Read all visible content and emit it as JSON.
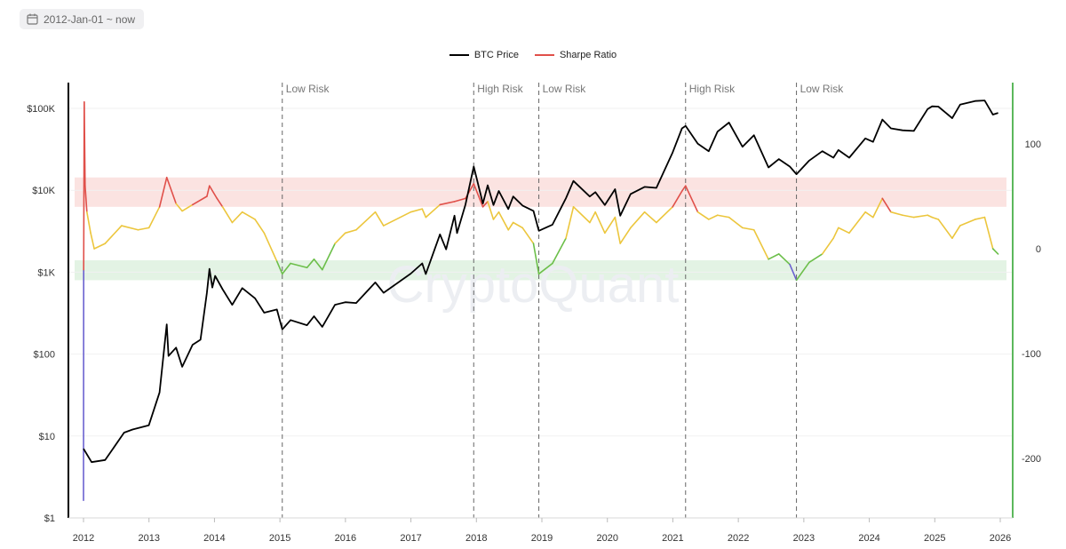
{
  "date_range": {
    "label": "2012-Jan-01 ~ now",
    "icon": "calendar-icon"
  },
  "watermark": "CryptoQuant",
  "colors": {
    "price": "#000000",
    "sharpe_red": "#e0504a",
    "sharpe_yellow": "#ecc63d",
    "sharpe_green": "#6cbf4a",
    "sharpe_blue": "#6b62d0",
    "right_axis": "#5cb85c",
    "high_band": "#fbe3e1",
    "low_band": "#e3f3e4"
  },
  "chart_data": {
    "type": "line",
    "legend": [
      "BTC Price",
      "Sharpe Ratio"
    ],
    "legend_position": "top-center",
    "grid": true,
    "x_axis": {
      "ticks": [
        "2012",
        "2013",
        "2014",
        "2015",
        "2016",
        "2017",
        "2018",
        "2019",
        "2020",
        "2021",
        "2022",
        "2023",
        "2024",
        "2025",
        "2026"
      ]
    },
    "y_left": {
      "scale": "log",
      "ticks": [
        "$1",
        "$10",
        "$100",
        "$1K",
        "$10K",
        "$100K"
      ],
      "range": [
        1,
        200000
      ]
    },
    "y_right": {
      "scale": "linear",
      "ticks": [
        "100",
        "0",
        "-100",
        "-200"
      ],
      "range": [
        -255,
        160
      ]
    },
    "bands": [
      {
        "label": "high",
        "from": 40,
        "to": 68
      },
      {
        "label": "low",
        "from": -30,
        "to": -11
      }
    ],
    "annotations": [
      {
        "x": "2015-01-14",
        "text": "Low Risk"
      },
      {
        "x": "2017-12-17",
        "text": "High Risk"
      },
      {
        "x": "2018-12-15",
        "text": "Low Risk"
      },
      {
        "x": "2021-03-13",
        "text": "High Risk"
      },
      {
        "x": "2022-11-21",
        "text": "Low Risk"
      }
    ],
    "series": [
      {
        "name": "BTC Price",
        "axis": "left",
        "points": [
          [
            "2012-01-01",
            7
          ],
          [
            "2012-02-15",
            4.8
          ],
          [
            "2012-05-01",
            5.1
          ],
          [
            "2012-08-15",
            11
          ],
          [
            "2012-10-01",
            12
          ],
          [
            "2012-12-31",
            13.5
          ],
          [
            "2013-03-01",
            34
          ],
          [
            "2013-04-10",
            230
          ],
          [
            "2013-04-20",
            95
          ],
          [
            "2013-06-01",
            120
          ],
          [
            "2013-07-05",
            70
          ],
          [
            "2013-09-01",
            130
          ],
          [
            "2013-10-15",
            150
          ],
          [
            "2013-11-20",
            560
          ],
          [
            "2013-12-04",
            1100
          ],
          [
            "2013-12-20",
            650
          ],
          [
            "2014-01-05",
            900
          ],
          [
            "2014-02-15",
            620
          ],
          [
            "2014-04-10",
            400
          ],
          [
            "2014-06-05",
            640
          ],
          [
            "2014-08-15",
            480
          ],
          [
            "2014-10-05",
            320
          ],
          [
            "2014-12-15",
            350
          ],
          [
            "2015-01-14",
            200
          ],
          [
            "2015-03-01",
            260
          ],
          [
            "2015-06-01",
            225
          ],
          [
            "2015-07-10",
            290
          ],
          [
            "2015-08-25",
            215
          ],
          [
            "2015-11-04",
            400
          ],
          [
            "2015-12-31",
            430
          ],
          [
            "2016-03-01",
            420
          ],
          [
            "2016-06-16",
            750
          ],
          [
            "2016-08-01",
            560
          ],
          [
            "2016-12-31",
            960
          ],
          [
            "2017-03-05",
            1280
          ],
          [
            "2017-03-25",
            950
          ],
          [
            "2017-06-12",
            2900
          ],
          [
            "2017-07-16",
            1900
          ],
          [
            "2017-09-01",
            4900
          ],
          [
            "2017-09-15",
            3000
          ],
          [
            "2017-11-01",
            6700
          ],
          [
            "2017-12-17",
            19500
          ],
          [
            "2018-02-06",
            6900
          ],
          [
            "2018-03-05",
            11500
          ],
          [
            "2018-04-06",
            6600
          ],
          [
            "2018-05-06",
            9800
          ],
          [
            "2018-06-28",
            5900
          ],
          [
            "2018-07-25",
            8400
          ],
          [
            "2018-09-15",
            6500
          ],
          [
            "2018-11-15",
            5600
          ],
          [
            "2018-12-15",
            3200
          ],
          [
            "2019-03-01",
            3800
          ],
          [
            "2019-05-15",
            8000
          ],
          [
            "2019-06-26",
            13000
          ],
          [
            "2019-09-25",
            8400
          ],
          [
            "2019-10-26",
            9500
          ],
          [
            "2019-12-18",
            6600
          ],
          [
            "2020-02-13",
            10300
          ],
          [
            "2020-03-13",
            4900
          ],
          [
            "2020-05-10",
            9000
          ],
          [
            "2020-07-27",
            11000
          ],
          [
            "2020-10-01",
            10700
          ],
          [
            "2020-12-31",
            29000
          ],
          [
            "2021-02-21",
            57000
          ],
          [
            "2021-03-13",
            61000
          ],
          [
            "2021-05-20",
            37000
          ],
          [
            "2021-07-20",
            30000
          ],
          [
            "2021-09-07",
            52000
          ],
          [
            "2021-11-10",
            67000
          ],
          [
            "2022-01-24",
            34000
          ],
          [
            "2022-03-29",
            47000
          ],
          [
            "2022-06-18",
            19000
          ],
          [
            "2022-08-15",
            24000
          ],
          [
            "2022-10-15",
            19500
          ],
          [
            "2022-11-21",
            15700
          ],
          [
            "2023-01-31",
            23000
          ],
          [
            "2023-04-14",
            30000
          ],
          [
            "2023-06-15",
            25000
          ],
          [
            "2023-07-13",
            31000
          ],
          [
            "2023-09-11",
            25000
          ],
          [
            "2023-12-10",
            43000
          ],
          [
            "2024-01-22",
            39000
          ],
          [
            "2024-03-14",
            73000
          ],
          [
            "2024-05-01",
            57000
          ],
          [
            "2024-07-05",
            54000
          ],
          [
            "2024-09-06",
            53000
          ],
          [
            "2024-11-22",
            98000
          ],
          [
            "2024-12-17",
            106000
          ],
          [
            "2025-01-21",
            105000
          ],
          [
            "2025-04-08",
            76000
          ],
          [
            "2025-05-22",
            111000
          ],
          [
            "2025-08-14",
            123000
          ],
          [
            "2025-10-06",
            125000
          ],
          [
            "2025-11-21",
            84000
          ],
          [
            "2025-12-20",
            88000
          ]
        ]
      },
      {
        "name": "Sharpe Ratio",
        "axis": "right",
        "points": [
          [
            "2012-01-01",
            -240
          ],
          [
            "2012-01-02",
            -20
          ],
          [
            "2012-01-05",
            140
          ],
          [
            "2012-01-10",
            60
          ],
          [
            "2012-01-20",
            35
          ],
          [
            "2012-02-10",
            15
          ],
          [
            "2012-03-01",
            0
          ],
          [
            "2012-05-01",
            5
          ],
          [
            "2012-08-01",
            22
          ],
          [
            "2012-11-01",
            18
          ],
          [
            "2013-01-01",
            20
          ],
          [
            "2013-03-01",
            40
          ],
          [
            "2013-04-10",
            68
          ],
          [
            "2013-06-01",
            43
          ],
          [
            "2013-07-05",
            36
          ],
          [
            "2013-09-01",
            42
          ],
          [
            "2013-11-20",
            50
          ],
          [
            "2013-12-04",
            60
          ],
          [
            "2014-01-15",
            48
          ],
          [
            "2014-02-15",
            40
          ],
          [
            "2014-04-10",
            25
          ],
          [
            "2014-06-05",
            35
          ],
          [
            "2014-08-15",
            28
          ],
          [
            "2014-10-05",
            15
          ],
          [
            "2014-12-15",
            -12
          ],
          [
            "2015-01-14",
            -24
          ],
          [
            "2015-03-01",
            -14
          ],
          [
            "2015-06-01",
            -18
          ],
          [
            "2015-07-10",
            -10
          ],
          [
            "2015-08-25",
            -20
          ],
          [
            "2015-11-04",
            5
          ],
          [
            "2015-12-31",
            15
          ],
          [
            "2016-03-01",
            18
          ],
          [
            "2016-06-16",
            35
          ],
          [
            "2016-08-01",
            22
          ],
          [
            "2016-12-31",
            35
          ],
          [
            "2017-03-05",
            38
          ],
          [
            "2017-03-25",
            30
          ],
          [
            "2017-06-12",
            42
          ],
          [
            "2017-09-01",
            45
          ],
          [
            "2017-11-01",
            48
          ],
          [
            "2017-12-17",
            62
          ],
          [
            "2018-02-06",
            40
          ],
          [
            "2018-03-05",
            45
          ],
          [
            "2018-04-06",
            28
          ],
          [
            "2018-05-06",
            35
          ],
          [
            "2018-06-28",
            18
          ],
          [
            "2018-07-25",
            25
          ],
          [
            "2018-09-15",
            20
          ],
          [
            "2018-11-15",
            5
          ],
          [
            "2018-12-15",
            -24
          ],
          [
            "2019-03-01",
            -14
          ],
          [
            "2019-05-15",
            10
          ],
          [
            "2019-06-26",
            40
          ],
          [
            "2019-09-25",
            25
          ],
          [
            "2019-10-26",
            35
          ],
          [
            "2019-12-18",
            15
          ],
          [
            "2020-02-13",
            30
          ],
          [
            "2020-03-13",
            5
          ],
          [
            "2020-05-10",
            20
          ],
          [
            "2020-07-27",
            35
          ],
          [
            "2020-10-01",
            25
          ],
          [
            "2020-12-31",
            40
          ],
          [
            "2021-02-21",
            55
          ],
          [
            "2021-03-13",
            60
          ],
          [
            "2021-05-20",
            35
          ],
          [
            "2021-07-20",
            28
          ],
          [
            "2021-09-07",
            32
          ],
          [
            "2021-11-10",
            30
          ],
          [
            "2022-01-24",
            20
          ],
          [
            "2022-03-29",
            18
          ],
          [
            "2022-06-18",
            -10
          ],
          [
            "2022-08-15",
            -5
          ],
          [
            "2022-10-15",
            -15
          ],
          [
            "2022-11-21",
            -30
          ],
          [
            "2023-01-31",
            -13
          ],
          [
            "2023-04-14",
            -5
          ],
          [
            "2023-06-15",
            10
          ],
          [
            "2023-07-13",
            20
          ],
          [
            "2023-09-11",
            15
          ],
          [
            "2023-12-10",
            35
          ],
          [
            "2024-01-22",
            30
          ],
          [
            "2024-03-14",
            48
          ],
          [
            "2024-05-01",
            35
          ],
          [
            "2024-07-05",
            32
          ],
          [
            "2024-09-06",
            30
          ],
          [
            "2024-11-22",
            32
          ],
          [
            "2024-12-17",
            30
          ],
          [
            "2025-01-21",
            28
          ],
          [
            "2025-04-08",
            10
          ],
          [
            "2025-05-22",
            22
          ],
          [
            "2025-08-14",
            28
          ],
          [
            "2025-10-06",
            30
          ],
          [
            "2025-11-21",
            0
          ],
          [
            "2025-12-20",
            -5
          ]
        ]
      }
    ]
  }
}
